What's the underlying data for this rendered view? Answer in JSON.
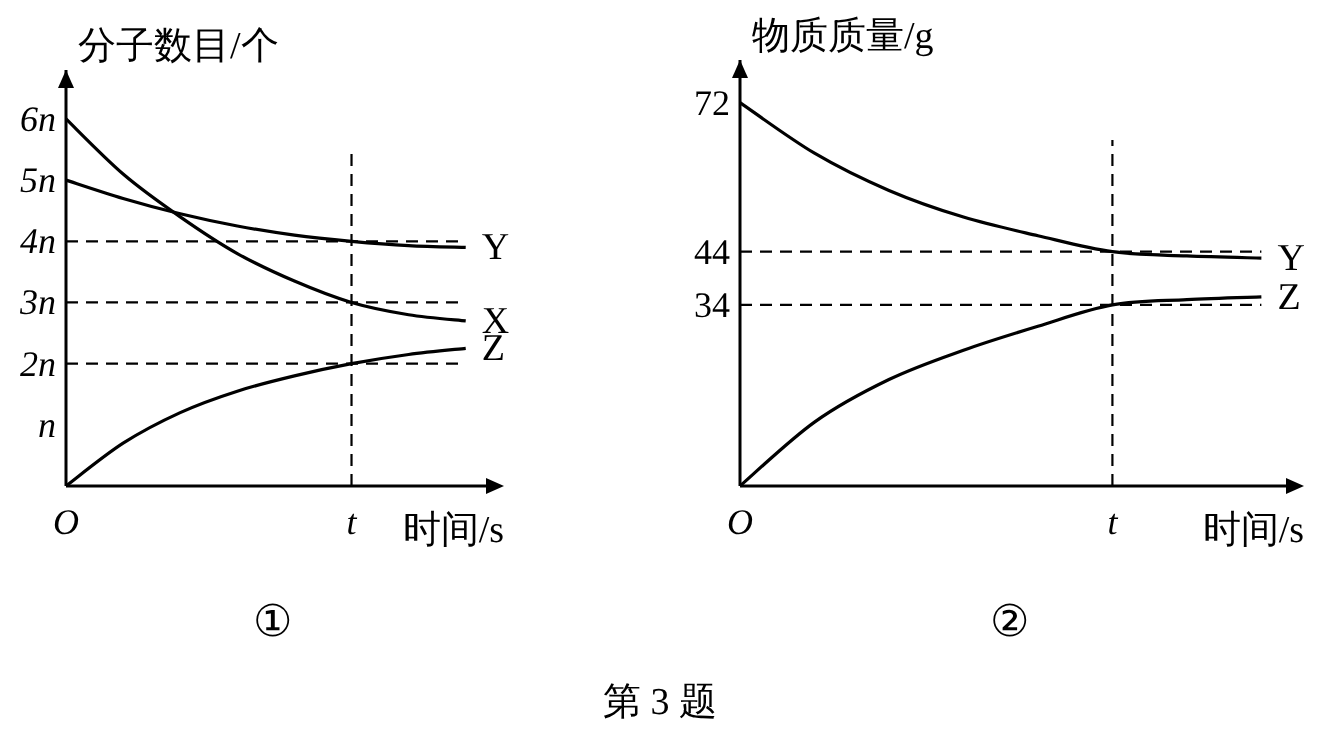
{
  "chart_data": [
    {
      "type": "line",
      "ylabel": "分子数目/个",
      "xlabel": "时间/s",
      "ylim": [
        0,
        6.8
      ],
      "categories": [
        "O",
        null,
        null,
        null,
        null,
        "t",
        null,
        null
      ],
      "yticks": [
        {
          "value": 1,
          "label": "n"
        },
        {
          "value": 2,
          "label": "2n"
        },
        {
          "value": 3,
          "label": "3n"
        },
        {
          "value": 4,
          "label": "4n"
        },
        {
          "value": 5,
          "label": "5n"
        },
        {
          "value": 6,
          "label": "6n"
        }
      ],
      "series": [
        {
          "name": "Y",
          "color": "#000000",
          "values": [
            5,
            4.7,
            4.45,
            4.25,
            4.1,
            4.0,
            3.93,
            3.9
          ]
        },
        {
          "name": "X",
          "color": "#000000",
          "values": [
            6,
            5.1,
            4.4,
            3.8,
            3.35,
            3.0,
            2.8,
            2.7
          ]
        },
        {
          "name": "Z",
          "color": "#000000",
          "values": [
            0,
            0.7,
            1.2,
            1.55,
            1.8,
            2.0,
            2.15,
            2.25
          ]
        }
      ],
      "ref_lines": [
        {
          "axis": "y",
          "value": 4,
          "line_style": "dashed"
        },
        {
          "axis": "y",
          "value": 3,
          "line_style": "dashed"
        },
        {
          "axis": "y",
          "value": 2,
          "line_style": "dashed"
        },
        {
          "axis": "x",
          "value": "t",
          "line_style": "dashed"
        }
      ],
      "legend": false,
      "grid": false,
      "marker": "none",
      "line_style": "solid",
      "annotations": [
        "①"
      ]
    },
    {
      "type": "line",
      "ylabel": "物质质量/g",
      "xlabel": "时间/s",
      "ylim": [
        0,
        80
      ],
      "categories": [
        "O",
        null,
        null,
        null,
        null,
        "t",
        null,
        null
      ],
      "yticks": [
        34,
        44,
        72
      ],
      "series": [
        {
          "name": "Y",
          "color": "#000000",
          "values": [
            72,
            62.5,
            55.5,
            50.5,
            47,
            44,
            43.2,
            42.8
          ]
        },
        {
          "name": "Z",
          "color": "#000000",
          "values": [
            0,
            12,
            20,
            25.5,
            30,
            34,
            35,
            35.5
          ]
        }
      ],
      "ref_lines": [
        {
          "axis": "y",
          "value": 44,
          "line_style": "dashed"
        },
        {
          "axis": "y",
          "value": 34,
          "line_style": "dashed"
        },
        {
          "axis": "x",
          "value": "t",
          "line_style": "dashed"
        }
      ],
      "legend": false,
      "grid": false,
      "marker": "none",
      "line_style": "solid",
      "annotations": [
        "②",
        "第 3 题"
      ]
    }
  ]
}
